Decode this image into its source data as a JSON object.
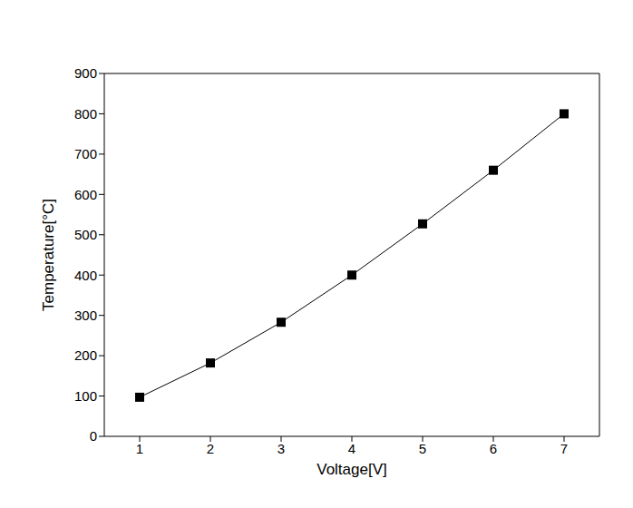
{
  "chart_data": {
    "type": "line",
    "x_label": "Voltage[V]",
    "y_label": "Temperature[°C]",
    "x": [
      1,
      2,
      3,
      4,
      5,
      6,
      7
    ],
    "values": [
      97,
      182,
      283,
      400,
      527,
      660,
      800
    ],
    "color": "#000000",
    "marker": "square",
    "xlim": [
      0.5,
      7.5
    ],
    "xticks": [
      1,
      2,
      3,
      4,
      5,
      6,
      7
    ],
    "ylim": [
      0,
      900
    ],
    "yticks": [
      0,
      100,
      200,
      300,
      400,
      500,
      600,
      700,
      800,
      900
    ],
    "grid": false
  }
}
